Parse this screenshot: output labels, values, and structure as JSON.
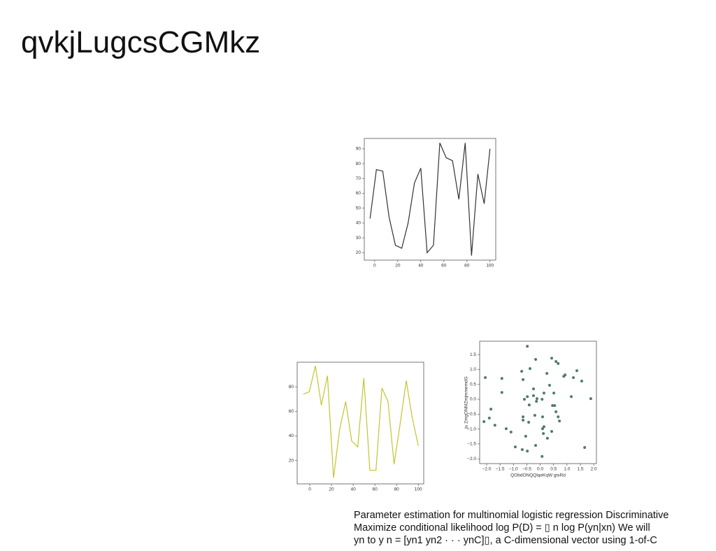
{
  "title": "qvkjLugcsCGMkz",
  "chart_data": [
    {
      "type": "line",
      "color": "#333333",
      "x": [
        -4,
        1.5,
        7,
        12.5,
        18,
        23.5,
        29,
        34.5,
        40,
        45.5,
        51,
        56.5,
        62,
        67.5,
        73,
        78.5,
        84,
        89.5,
        95,
        100
      ],
      "values": [
        43,
        76,
        75,
        44,
        25,
        23,
        40,
        67,
        77,
        20,
        25,
        94,
        84,
        82,
        56,
        94,
        18,
        73,
        53,
        90
      ],
      "xlim": [
        -9,
        105
      ],
      "ylim": [
        15,
        97
      ],
      "xticks": [
        0,
        20,
        40,
        60,
        80,
        100
      ],
      "yticks": [
        20,
        30,
        40,
        50,
        60,
        70,
        80,
        90
      ]
    },
    {
      "type": "line",
      "color": "#c4c430",
      "x": [
        -6,
        -0.4,
        5.2,
        10.7,
        16.3,
        21.9,
        27.5,
        33.1,
        38.6,
        44.2,
        49.8,
        55.4,
        61,
        66.5,
        72.1,
        77.7,
        83.3,
        88.9,
        94.4,
        100
      ],
      "values": [
        74,
        76,
        97,
        65,
        89,
        6,
        45,
        68,
        36,
        31,
        87,
        12,
        12,
        79,
        68,
        17,
        50,
        85,
        55,
        32
      ],
      "xlim": [
        -11.6,
        105
      ],
      "ylim": [
        1,
        100
      ],
      "xticks": [
        0,
        20,
        40,
        60,
        80,
        100
      ],
      "yticks": [
        20,
        40,
        60,
        80
      ]
    },
    {
      "type": "scatter",
      "color": "#4f7a6f",
      "xlabel": "QObdONQQlqeKqW gtxRd",
      "ylabel": "ju ZmgONMZmjmmemdG",
      "x": [
        -0.48,
        -2.05,
        -1.43,
        -0.69,
        -0.64,
        -0.17,
        -0.38,
        0.43,
        0.59,
        0.67,
        1.37,
        0.93,
        0.88,
        1.24,
        1.55,
        0.25,
        -1.43,
        -0.25,
        0.14,
        0.35,
        0.51,
        1.16,
        1.89,
        -0.48,
        -0.59,
        -0.12,
        0.07,
        -0.25,
        -0.41,
        -0.14,
        -1.84,
        -1.9,
        -2.1,
        -1.69,
        -1.27,
        -1.09,
        -0.64,
        -0.64,
        -0.43,
        -0.2,
        0.09,
        0.46,
        0.54,
        0.59,
        0.67,
        0.72,
        0.09,
        0.14,
        0.12,
        0.43,
        0.27,
        -0.54,
        -0.93,
        -0.17,
        -0.67,
        -0.48,
        0.07,
        1.66
      ],
      "values": [
        1.78,
        0.73,
        0.7,
        0.94,
        0.66,
        1.34,
        1.03,
        1.38,
        1.27,
        1.2,
        0.96,
        0.82,
        0.77,
        0.73,
        0.61,
        0.87,
        0.23,
        0.35,
        0.21,
        0.47,
        0.21,
        0.09,
        0.02,
        0.09,
        0,
        0.02,
        0,
        0.12,
        -0.19,
        -0.07,
        -0.33,
        -0.63,
        -0.75,
        -0.87,
        -0.99,
        -1.1,
        -0.59,
        -0.7,
        -0.77,
        -0.54,
        -0.59,
        -0.21,
        -0.21,
        -0.42,
        -0.59,
        -0.73,
        -0.99,
        -0.92,
        -1.15,
        -1.08,
        -1.31,
        -1.24,
        -1.6,
        -1.55,
        -1.69,
        -1.74,
        -1.92,
        -1.62
      ],
      "xlim": [
        -2.26,
        2.1
      ],
      "ylim": [
        -2.16,
        1.95
      ],
      "xticks": [
        {
          "value": -2,
          "label": "−2.0"
        },
        {
          "value": -1.5,
          "label": "−1.5"
        },
        {
          "value": -1,
          "label": "−1.0"
        },
        {
          "value": -0.5,
          "label": "−0.5"
        },
        {
          "value": 0,
          "label": "0.0"
        },
        {
          "value": 0.5,
          "label": "0.5"
        },
        {
          "value": 1,
          "label": "1.0"
        },
        {
          "value": 1.5,
          "label": "1.5"
        },
        {
          "value": 2,
          "label": "2.0"
        }
      ],
      "yticks": [
        {
          "value": -2,
          "label": "−2.0"
        },
        {
          "value": -1.5,
          "label": "−1.5"
        },
        {
          "value": -1,
          "label": "−1.0"
        },
        {
          "value": -0.5,
          "label": "−0.5"
        },
        {
          "value": 0,
          "label": "0.0"
        },
        {
          "value": 0.5,
          "label": "0.5"
        },
        {
          "value": 1,
          "label": "1.0"
        },
        {
          "value": 1.5,
          "label": "1.5"
        }
      ]
    }
  ],
  "notes": [
    "Parameter estimation for multinomial logistic regression Discriminative",
    "Maximize conditional likelihood log P(D) = ▯ n log P(yn|xn) We will",
    "yn to y n = [yn1 yn2 · · · ynC]▯, a C-dimensional vector using 1-of-C"
  ]
}
